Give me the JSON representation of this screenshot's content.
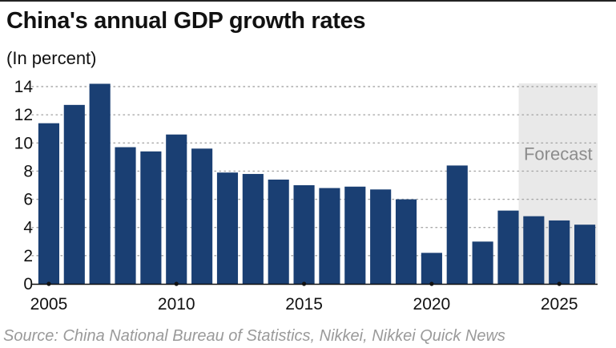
{
  "header": {
    "title": "China's annual GDP growth rates",
    "subtitle": "(In percent)"
  },
  "footer": {
    "source": "Source: China National Bureau of Statistics, Nikkei, Nikkei Quick News"
  },
  "colors": {
    "bar": "#1a3f73",
    "forecast_band": "#e9e9e9",
    "grid": "#a8a8a8",
    "source_text": "#9a9a9a"
  },
  "chart_data": {
    "type": "bar",
    "title": "China's annual GDP growth rates",
    "subtitle": "(In percent)",
    "categories": [
      2005,
      2006,
      2007,
      2008,
      2009,
      2010,
      2011,
      2012,
      2013,
      2014,
      2015,
      2016,
      2017,
      2018,
      2019,
      2020,
      2021,
      2022,
      2023,
      2024,
      2025,
      2026
    ],
    "values": [
      11.4,
      12.7,
      14.2,
      9.7,
      9.4,
      10.6,
      9.6,
      7.9,
      7.8,
      7.4,
      7.0,
      6.8,
      6.9,
      6.7,
      6.0,
      2.2,
      8.4,
      3.0,
      5.2,
      4.8,
      4.5,
      4.2
    ],
    "xticks": [
      "2005",
      "2010",
      "2015",
      "2020",
      "2025"
    ],
    "yticks": [
      "0",
      "2",
      "4",
      "6",
      "8",
      "10",
      "12",
      "14"
    ],
    "ylim": [
      0,
      14
    ],
    "grid": true,
    "forecast": {
      "label": "Forecast",
      "from": 2024,
      "to": 2026
    }
  }
}
